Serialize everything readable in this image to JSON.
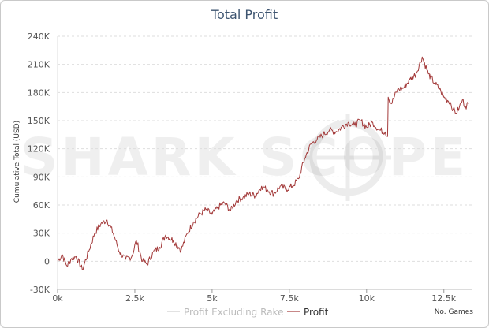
{
  "chart_data": {
    "type": "line",
    "title": "Total Profit",
    "ylabel": "Cumulative Total (USD)",
    "xlabel": "No. Games",
    "watermark": "SHARK SCOPE",
    "xlim": [
      0,
      13400
    ],
    "ylim": [
      -30000,
      240000
    ],
    "x_ticks": [
      0,
      2500,
      5000,
      7500,
      10000,
      12500
    ],
    "x_tick_labels": [
      "0k",
      "2.5k",
      "5k",
      "7.5k",
      "10k",
      "12.5k"
    ],
    "y_ticks": [
      -30000,
      0,
      30000,
      60000,
      90000,
      120000,
      150000,
      180000,
      210000,
      240000
    ],
    "y_tick_labels": [
      "-30K",
      "0",
      "30K",
      "60K",
      "90K",
      "120K",
      "150K",
      "180K",
      "210K",
      "240K"
    ],
    "grid": true,
    "legend_position": "bottom-center",
    "series": [
      {
        "name": "Profit Excluding Rake",
        "color": "#cfcfcf",
        "x": [],
        "y": []
      },
      {
        "name": "Profit",
        "color": "#a33a3a",
        "x": [
          0,
          150,
          300,
          450,
          600,
          800,
          1000,
          1200,
          1400,
          1600,
          1800,
          2000,
          2200,
          2400,
          2550,
          2750,
          2900,
          3100,
          3300,
          3500,
          3750,
          4000,
          4200,
          4400,
          4600,
          4800,
          5000,
          5200,
          5400,
          5600,
          5800,
          6000,
          6200,
          6400,
          6600,
          6800,
          7000,
          7200,
          7400,
          7600,
          7800,
          8000,
          8200,
          8400,
          8600,
          8800,
          9000,
          9200,
          9400,
          9600,
          9800,
          10000,
          10200,
          10400,
          10600,
          10680,
          10700,
          10800,
          11000,
          11200,
          11400,
          11600,
          11800,
          12000,
          12200,
          12400,
          12500,
          12700,
          12800,
          12900,
          13000,
          13100,
          13200,
          13300
        ],
        "y": [
          0,
          7000,
          -5000,
          3000,
          5000,
          -9000,
          10000,
          30000,
          40000,
          44000,
          30000,
          10000,
          2000,
          5000,
          22000,
          0,
          -3000,
          10000,
          15000,
          28000,
          22000,
          12000,
          30000,
          42000,
          50000,
          55000,
          50000,
          58000,
          62000,
          54000,
          65000,
          68000,
          72000,
          70000,
          80000,
          76000,
          72000,
          80000,
          77000,
          80000,
          88000,
          110000,
          125000,
          130000,
          135000,
          140000,
          138000,
          143000,
          148000,
          145000,
          150000,
          143000,
          148000,
          140000,
          138000,
          133000,
          175000,
          168000,
          183000,
          185000,
          194000,
          200000,
          218000,
          200000,
          190000,
          182000,
          175000,
          170000,
          162000,
          158000,
          164000,
          172000,
          165000,
          168000
        ]
      }
    ]
  }
}
